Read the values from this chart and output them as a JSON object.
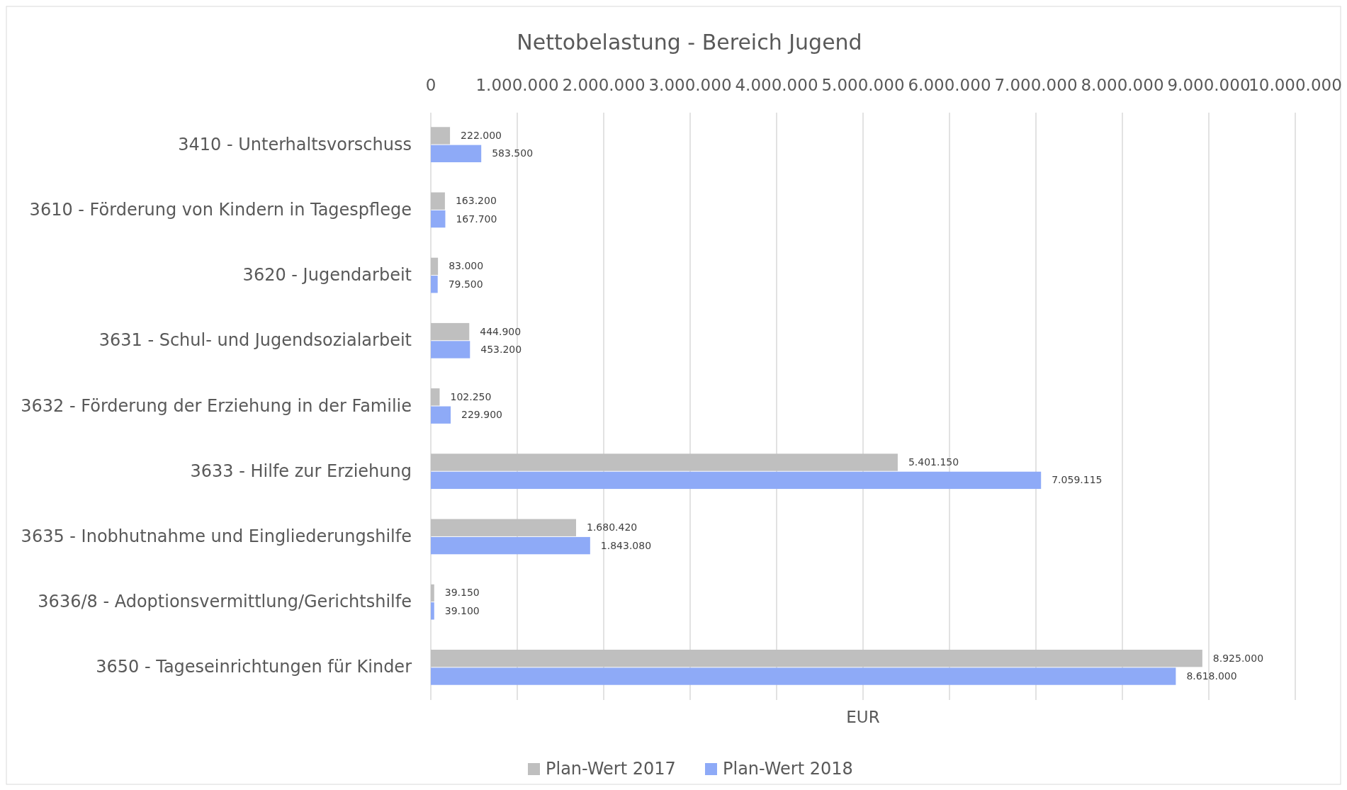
{
  "chart_data": {
    "type": "bar",
    "orientation": "horizontal",
    "title": "Nettobelastung - Bereich Jugend",
    "xlabel": "EUR",
    "categories": [
      "3410 - Unterhaltsvorschuss",
      "3610 - Förderung von Kindern in Tagespflege",
      "3620 - Jugendarbeit",
      "3631 - Schul- und Jugendsozialarbeit",
      "3632 - Förderung der Erziehung in der Familie",
      "3633 - Hilfe zur Erziehung",
      "3635 - Inobhutnahme und Eingliederungshilfe",
      "3636/8 - Adoptionsvermittlung/Gerichtshilfe",
      "3650 - Tageseinrichtungen für Kinder"
    ],
    "series": [
      {
        "name": "Plan-Wert 2017",
        "color": "#bfbfbf",
        "values": [
          222000,
          163200,
          83000,
          444900,
          102250,
          5401150,
          1680420,
          39150,
          8925000
        ],
        "value_labels": [
          "222.000",
          "163.200",
          "83.000",
          "444.900",
          "102.250",
          "5.401.150",
          "1.680.420",
          "39.150",
          "8.925.000"
        ]
      },
      {
        "name": "Plan-Wert 2018",
        "color": "#8eaaf7",
        "values": [
          583500,
          167700,
          79500,
          453200,
          229900,
          7059115,
          1843080,
          39100,
          8618000
        ],
        "value_labels": [
          "583.500",
          "167.700",
          "79.500",
          "453.200",
          "229.900",
          "7.059.115",
          "1.843.080",
          "39.100",
          "8.618.000"
        ]
      }
    ],
    "xlim": [
      0,
      10000000
    ],
    "xticks": [
      0,
      {
        "value": 1000000,
        "label": "1.000.000"
      },
      {
        "value": 2000000,
        "label": "2.000.000"
      },
      {
        "value": 3000000,
        "label": "3.000.000"
      },
      {
        "value": 4000000,
        "label": "4.000.000"
      },
      {
        "value": 5000000,
        "label": "5.000.000"
      },
      {
        "value": 6000000,
        "label": "6.000.000"
      },
      {
        "value": 7000000,
        "label": "7.000.000"
      },
      {
        "value": 8000000,
        "label": "8.000.000"
      },
      {
        "value": 9000000,
        "label": "9.000.000"
      },
      {
        "value": 10000000,
        "label": "10.000.000"
      }
    ],
    "grid": "x",
    "legend": "bottom"
  }
}
